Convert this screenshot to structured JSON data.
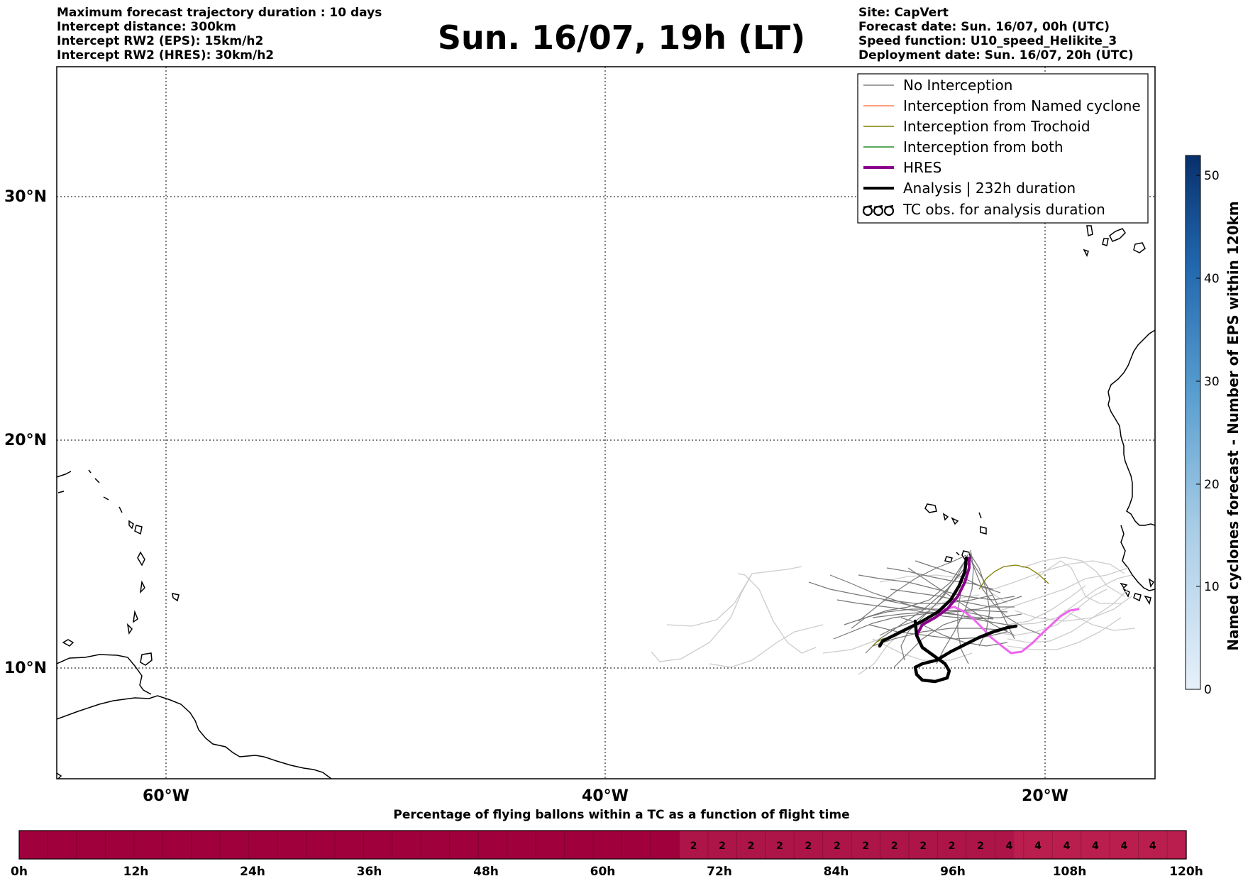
{
  "title": "Sun. 16/07, 19h (LT)",
  "header_left": [
    "Maximum forecast trajectory duration : 10 days",
    "Intercept distance: 300km",
    "Intercept RW2 (EPS):  15km/h2",
    "Intercept RW2 (HRES): 30km/h2"
  ],
  "header_right": [
    "Site: CapVert",
    "Forecast date: Sun. 16/07, 00h (UTC)",
    "Speed function: U10_speed_Helikite_3",
    "Deployment date: Sun. 16/07, 20h (UTC)"
  ],
  "legend": [
    {
      "label": "No Interception",
      "color": "#808080",
      "style": "thin"
    },
    {
      "label": "Interception from Named cyclone",
      "color": "#ff7f50",
      "style": "thin"
    },
    {
      "label": "Interception from Trochoid",
      "color": "#808000",
      "style": "thin"
    },
    {
      "label": "Interception from both",
      "color": "#228b22",
      "style": "thin"
    },
    {
      "label": "HRES",
      "color": "#8b008b",
      "style": "thick"
    },
    {
      "label": "Analysis | 232h duration",
      "color": "#000000",
      "style": "thick"
    },
    {
      "label": "TC obs. for analysis duration",
      "color": "#000000",
      "style": "symbol",
      "symbol": "ббб"
    }
  ],
  "chart_data": [
    {
      "type": "line",
      "description_kind": "trajectory map",
      "x_axis": {
        "ticks": [
          "60°W",
          "40°W",
          "20°W"
        ],
        "tick_values": [
          -60,
          -40,
          -20
        ],
        "range": [
          -65,
          -15
        ]
      },
      "y_axis": {
        "ticks": [
          "10°N",
          "20°N",
          "30°N"
        ],
        "tick_values": [
          10,
          20,
          30
        ],
        "range": [
          5.4,
          34.7
        ]
      },
      "grid": true,
      "legend_position": "top-right",
      "series": [
        {
          "name": "HRES",
          "color": "#8b008b",
          "x": [
            -23.3,
            -23.8,
            -24.5,
            -25.3,
            -26.0,
            -26.5
          ],
          "y": [
            14.6,
            13.8,
            13.0,
            12.4,
            11.9,
            11.4
          ]
        },
        {
          "name": "HRES",
          "color": "#ee66ee",
          "x": [
            -25.2,
            -24.2,
            -23.2,
            -22.3,
            -21.5,
            -20.9,
            -20.3,
            -19.6,
            -18.9,
            -18.2
          ],
          "y": [
            12.5,
            12.6,
            12.2,
            11.7,
            11.1,
            10.6,
            10.8,
            11.5,
            12.3,
            12.6
          ]
        },
        {
          "name": "Analysis | 232h duration",
          "color": "#000000",
          "x": [
            -23.2,
            -23.7,
            -24.2,
            -24.8,
            -25.5,
            -26.3,
            -27.0,
            -27.7,
            -28.1
          ],
          "y": [
            14.8,
            14.0,
            13.4,
            12.8,
            12.3,
            11.9,
            11.6,
            11.4,
            11.2
          ]
        },
        {
          "name": "Analysis | 232h duration",
          "color": "#000000",
          "x": [
            -26.5,
            -26.1,
            -25.8,
            -25.3,
            -25.0,
            -25.1,
            -25.6,
            -26.3,
            -25.8,
            -25.0,
            -24.0,
            -23.0,
            -22.0,
            -21.3
          ],
          "y": [
            11.9,
            11.3,
            10.6,
            10.2,
            9.9,
            9.7,
            9.7,
            10.0,
            10.2,
            10.3,
            10.7,
            11.1,
            11.6,
            11.7
          ]
        },
        {
          "name": "Interception from Trochoid",
          "color": "#808000",
          "x": [
            -23.2,
            -22.7,
            -22.2,
            -21.5,
            -20.8,
            -20.2
          ],
          "y": [
            12.8,
            13.5,
            14.1,
            14.4,
            14.2,
            13.6
          ]
        },
        {
          "name": "Interception from Trochoid",
          "color": "#808000",
          "x": [
            -28.1,
            -27.8,
            -27.3,
            -26.8
          ],
          "y": [
            10.8,
            11.1,
            11.4,
            11.6
          ]
        }
      ]
    },
    {
      "type": "heatmap",
      "title": "Named cyclones forecast - Number of EPS within 120km",
      "ticks": [
        "0",
        "10",
        "20",
        "30",
        "40",
        "50"
      ],
      "range": [
        0,
        52
      ]
    },
    {
      "type": "heatmap",
      "title": "Percentage of flying ballons within a TC as a function of flight time",
      "x_ticks": [
        "0h",
        "12h",
        "24h",
        "36h",
        "48h",
        "60h",
        "72h",
        "84h",
        "96h",
        "108h",
        "120h"
      ],
      "values": [
        0,
        0,
        0,
        0,
        0,
        0,
        0,
        0,
        0,
        0,
        0,
        0,
        0,
        0,
        0,
        0,
        0,
        0,
        0,
        0,
        0,
        0,
        0,
        0,
        0,
        0,
        0,
        0,
        0,
        0,
        0,
        0,
        0,
        0,
        0,
        0,
        0,
        0,
        0,
        0,
        0,
        0,
        0,
        0,
        0,
        0,
        0,
        0,
        0,
        0,
        0,
        0,
        0,
        0,
        0,
        0,
        0,
        0,
        0,
        0,
        0,
        0,
        0,
        0,
        0,
        0,
        0,
        0,
        0,
        2,
        2,
        2,
        2,
        2,
        2,
        2,
        2,
        2,
        2,
        2,
        2,
        2,
        2,
        2,
        2,
        2,
        2,
        2,
        2,
        2,
        2,
        2,
        2,
        2,
        2,
        2,
        2,
        2,
        2,
        2,
        2,
        2,
        2,
        2,
        4,
        4,
        4,
        4,
        4,
        4,
        4,
        4,
        4,
        4,
        4,
        4,
        4,
        4,
        4,
        4,
        4,
        4
      ],
      "value_labels": [
        {
          "hour": 70.5,
          "text": "2"
        },
        {
          "hour": 73.5,
          "text": "2"
        },
        {
          "hour": 76.5,
          "text": "2"
        },
        {
          "hour": 79.5,
          "text": "2"
        },
        {
          "hour": 82.5,
          "text": "2"
        },
        {
          "hour": 85.5,
          "text": "2"
        },
        {
          "hour": 88.5,
          "text": "2"
        },
        {
          "hour": 91.5,
          "text": "2"
        },
        {
          "hour": 94.5,
          "text": "2"
        },
        {
          "hour": 97.5,
          "text": "2"
        },
        {
          "hour": 100.5,
          "text": "2"
        },
        {
          "hour": 103.5,
          "text": "4"
        },
        {
          "hour": 106.5,
          "text": "4"
        },
        {
          "hour": 109.5,
          "text": "4"
        },
        {
          "hour": 112.5,
          "text": "4"
        },
        {
          "hour": 115.5,
          "text": "4"
        },
        {
          "hour": 118.5,
          "text": "4"
        }
      ]
    }
  ],
  "colors": {
    "no_interception": "#808080",
    "ensemble_light": "#c8c8c8",
    "timebar_base": "#a0003c",
    "timebar_2": "#ad1448",
    "timebar_4": "#b91e4e",
    "colorbar_low": "#e3eef8",
    "colorbar_high": "#08306b"
  }
}
